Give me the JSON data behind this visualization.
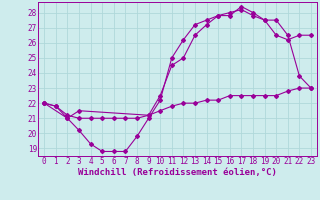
{
  "background_color": "#ceeced",
  "grid_color": "#b0d8da",
  "line_color": "#990099",
  "xlabel": "Windchill (Refroidissement éolien,°C)",
  "xlabel_fontsize": 6.5,
  "xtick_fontsize": 5.5,
  "ytick_fontsize": 5.5,
  "ylim": [
    18.5,
    28.7
  ],
  "xlim": [
    -0.5,
    23.5
  ],
  "yticks": [
    19,
    20,
    21,
    22,
    23,
    24,
    25,
    26,
    27,
    28
  ],
  "xticks": [
    0,
    1,
    2,
    3,
    4,
    5,
    6,
    7,
    8,
    9,
    10,
    11,
    12,
    13,
    14,
    15,
    16,
    17,
    18,
    19,
    20,
    21,
    22,
    23
  ],
  "line1_x": [
    0,
    1,
    2,
    3,
    4,
    5,
    6,
    7,
    8,
    9,
    10,
    11,
    12,
    13,
    14,
    15,
    16,
    17,
    18,
    19,
    20,
    21,
    22,
    23
  ],
  "line1_y": [
    22.0,
    21.8,
    21.0,
    20.2,
    19.3,
    18.8,
    18.8,
    18.8,
    19.8,
    21.0,
    22.2,
    25.0,
    26.2,
    27.2,
    27.5,
    27.8,
    28.0,
    28.2,
    27.8,
    27.5,
    26.5,
    26.2,
    26.5,
    26.5
  ],
  "line2_x": [
    0,
    1,
    2,
    3,
    4,
    5,
    6,
    7,
    8,
    9,
    10,
    11,
    12,
    13,
    14,
    15,
    16,
    17,
    18,
    19,
    20,
    21,
    22,
    23
  ],
  "line2_y": [
    22.0,
    21.8,
    21.2,
    21.0,
    21.0,
    21.0,
    21.0,
    21.0,
    21.0,
    21.2,
    21.5,
    21.8,
    22.0,
    22.0,
    22.2,
    22.2,
    22.5,
    22.5,
    22.5,
    22.5,
    22.5,
    22.8,
    23.0,
    23.0
  ],
  "line3_x": [
    0,
    2,
    3,
    9,
    10,
    11,
    12,
    13,
    14,
    15,
    16,
    17,
    18,
    19,
    20,
    21,
    22,
    23
  ],
  "line3_y": [
    22.0,
    21.0,
    21.5,
    21.2,
    22.5,
    24.5,
    25.0,
    26.5,
    27.2,
    27.8,
    27.8,
    28.4,
    28.0,
    27.5,
    27.5,
    26.5,
    23.8,
    23.0
  ]
}
